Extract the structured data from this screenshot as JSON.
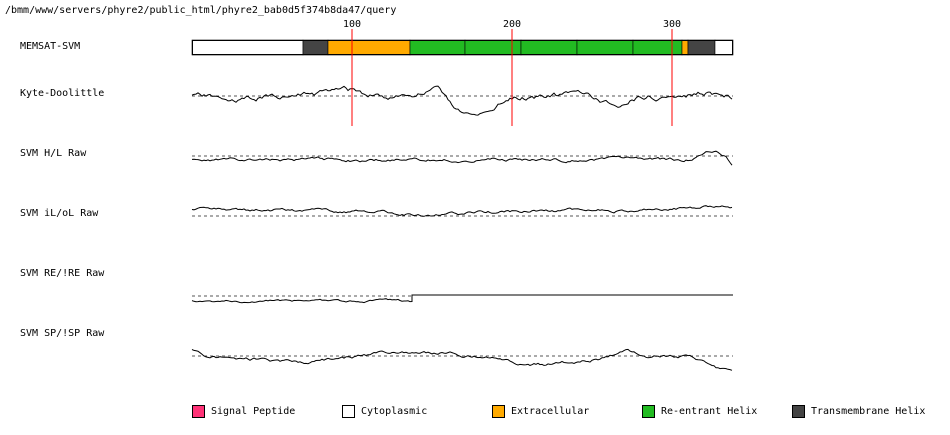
{
  "header": {
    "path": "/bmm/www/servers/phyre2/public_html/phyre2_bab0d5f374b8da47/query"
  },
  "ruler": {
    "ticks": [
      "100",
      "200",
      "300"
    ]
  },
  "tracks": [
    {
      "label": "MEMSAT-SVM"
    },
    {
      "label": "Kyte-Doolittle"
    },
    {
      "label": "SVM H/L Raw"
    },
    {
      "label": "SVM iL/oL Raw"
    },
    {
      "label": "SVM RE/!RE Raw"
    },
    {
      "label": "SVM SP/!SP Raw"
    }
  ],
  "colors": {
    "signal_peptide": "#ff3377",
    "cytoplasmic": "#ffffff",
    "extracellular": "#ffaa00",
    "reentrant_helix": "#22bb22",
    "transmembrane_helix": "#444444",
    "marker": "#ff0000"
  },
  "legend": [
    {
      "label": "Signal Peptide",
      "color": "#ff3377"
    },
    {
      "label": "Cytoplasmic",
      "color": "#ffffff"
    },
    {
      "label": "Extracellular",
      "color": "#ffaa00"
    },
    {
      "label": "Re-entrant Helix",
      "color": "#22bb22"
    },
    {
      "label": "Transmembrane Helix",
      "color": "#444444"
    }
  ],
  "memsat_segments": [
    {
      "type": "cytoplasmic",
      "start": 1,
      "end": 70
    },
    {
      "type": "transmembrane_helix",
      "start": 70,
      "end": 86
    },
    {
      "type": "extracellular",
      "start": 86,
      "end": 137
    },
    {
      "type": "reentrant_helix",
      "start": 137,
      "end": 171
    },
    {
      "type": "reentrant_helix",
      "start": 171,
      "end": 206
    },
    {
      "type": "reentrant_helix",
      "start": 206,
      "end": 241
    },
    {
      "type": "reentrant_helix",
      "start": 241,
      "end": 276
    },
    {
      "type": "reentrant_helix",
      "start": 276,
      "end": 306
    },
    {
      "type": "extracellular",
      "start": 306,
      "end": 310
    },
    {
      "type": "transmembrane_helix",
      "start": 310,
      "end": 327
    },
    {
      "type": "cytoplasmic",
      "start": 327,
      "end": 338
    }
  ],
  "sequence_length": 338
}
